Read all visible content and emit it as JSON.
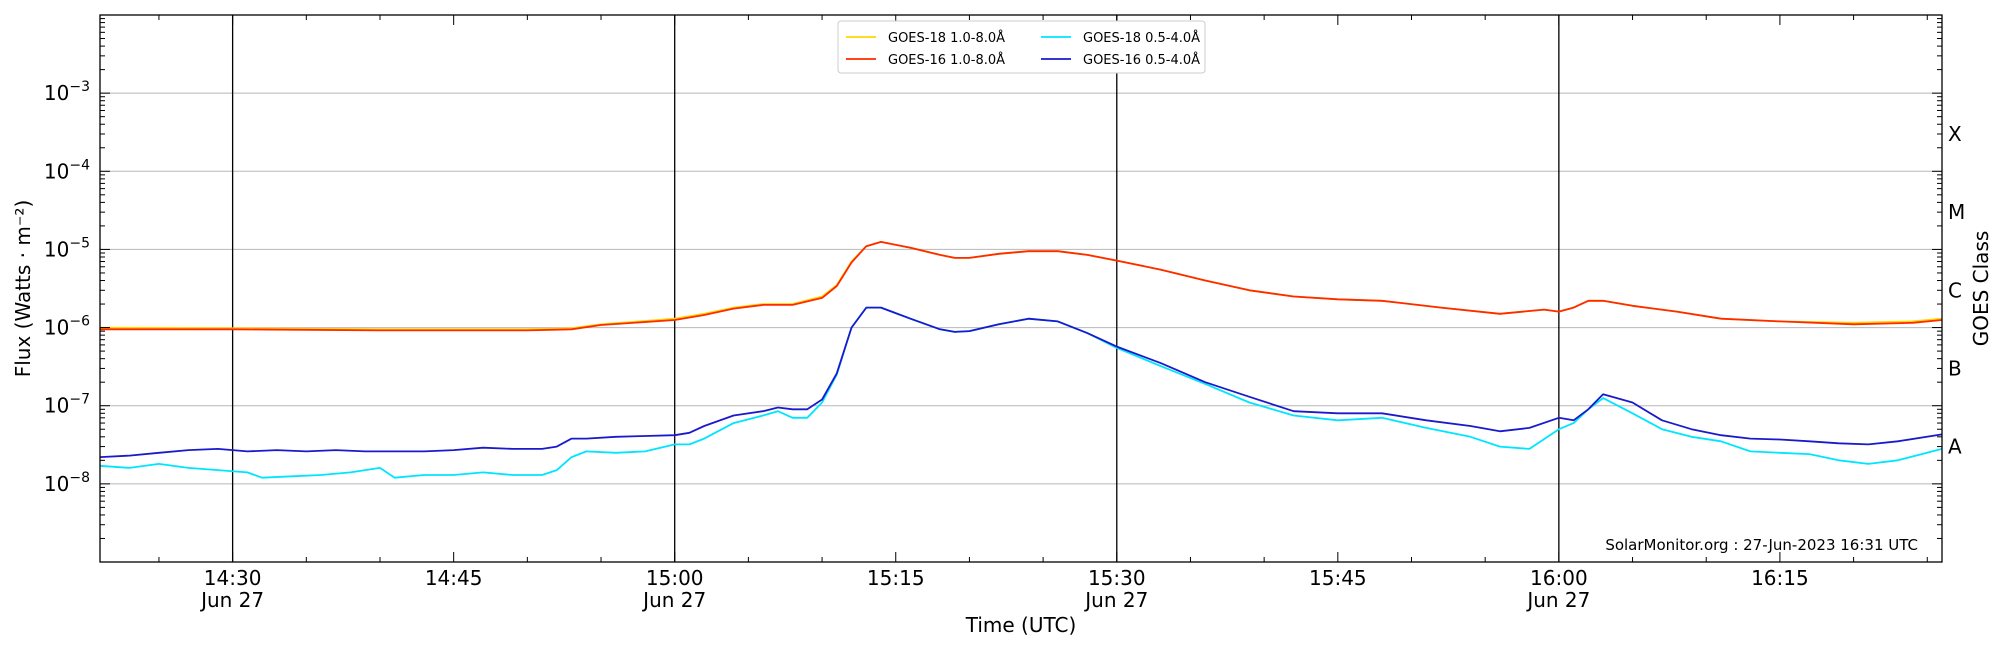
{
  "chart_data": {
    "type": "line",
    "xlabel": "Time (UTC)",
    "ylabel": "Flux (Watts · m⁻²)",
    "y2label": "GOES Class",
    "credit": "SolarMonitor.org : 27-Jun-2023 16:31 UTC",
    "yscale": "log",
    "ylim": [
      1e-09,
      0.01
    ],
    "xlim": [
      "14:21",
      "16:26"
    ],
    "y_ticks": [
      {
        "value": 1e-08,
        "base": "10",
        "exp": "−8"
      },
      {
        "value": 1e-07,
        "base": "10",
        "exp": "−7"
      },
      {
        "value": 1e-06,
        "base": "10",
        "exp": "−6"
      },
      {
        "value": 1e-05,
        "base": "10",
        "exp": "−5"
      },
      {
        "value": 0.0001,
        "base": "10",
        "exp": "−4"
      },
      {
        "value": 0.001,
        "base": "10",
        "exp": "−3"
      }
    ],
    "x_ticks": [
      {
        "time": "14:30",
        "label": "14:30",
        "date": "Jun 27"
      },
      {
        "time": "14:45",
        "label": "14:45",
        "date": ""
      },
      {
        "time": "15:00",
        "label": "15:00",
        "date": "Jun 27"
      },
      {
        "time": "15:15",
        "label": "15:15",
        "date": ""
      },
      {
        "time": "15:30",
        "label": "15:30",
        "date": "Jun 27"
      },
      {
        "time": "15:45",
        "label": "15:45",
        "date": ""
      },
      {
        "time": "16:00",
        "label": "16:00",
        "date": "Jun 27"
      },
      {
        "time": "16:15",
        "label": "16:15",
        "date": ""
      }
    ],
    "vertical_lines": [
      "14:30",
      "15:00",
      "15:30",
      "16:00"
    ],
    "goes_classes": [
      {
        "label": "A",
        "value": 3e-08
      },
      {
        "label": "B",
        "value": 3e-07
      },
      {
        "label": "C",
        "value": 3e-06
      },
      {
        "label": "M",
        "value": 3e-05
      },
      {
        "label": "X",
        "value": 0.0003
      }
    ],
    "grid": "horizontal",
    "legend_position": "top-center",
    "series": [
      {
        "name": "GOES-18 1.0-8.0Å",
        "color": "#ffd700",
        "x": [
          "14:21",
          "14:30",
          "14:40",
          "14:50",
          "14:53",
          "14:55",
          "15:00",
          "15:02",
          "15:04",
          "15:06",
          "15:08",
          "15:10",
          "15:11",
          "15:12",
          "15:13",
          "15:14",
          "15:16",
          "15:18",
          "15:19",
          "15:20",
          "15:22",
          "15:24",
          "15:26",
          "15:28",
          "15:30",
          "15:33",
          "15:36",
          "15:39",
          "15:42",
          "15:45",
          "15:48",
          "15:52",
          "15:56",
          "15:59",
          "16:00",
          "16:01",
          "16:02",
          "16:03",
          "16:05",
          "16:08",
          "16:11",
          "16:15",
          "16:20",
          "16:24",
          "16:26"
        ],
        "values": [
          1e-06,
          9.8e-07,
          9.5e-07,
          9.5e-07,
          9.8e-07,
          1.1e-06,
          1.3e-06,
          1.5e-06,
          1.8e-06,
          2e-06,
          2e-06,
          2.5e-06,
          3.5e-06,
          7e-06,
          1.1e-05,
          1.25e-05,
          1.05e-05,
          8.5e-06,
          7.8e-06,
          7.8e-06,
          8.8e-06,
          9.5e-06,
          9.5e-06,
          8.5e-06,
          7.2e-06,
          5.5e-06,
          4e-06,
          3e-06,
          2.5e-06,
          2.3e-06,
          2.2e-06,
          1.8e-06,
          1.5e-06,
          1.7e-06,
          1.6e-06,
          1.8e-06,
          2.2e-06,
          2.2e-06,
          1.9e-06,
          1.6e-06,
          1.3e-06,
          1.2e-06,
          1.15e-06,
          1.2e-06,
          1.3e-06
        ]
      },
      {
        "name": "GOES-16 1.0-8.0Å",
        "color": "#ff2a00",
        "x": [
          "14:21",
          "14:30",
          "14:40",
          "14:50",
          "14:53",
          "14:55",
          "15:00",
          "15:02",
          "15:04",
          "15:06",
          "15:08",
          "15:10",
          "15:11",
          "15:12",
          "15:13",
          "15:14",
          "15:16",
          "15:18",
          "15:19",
          "15:20",
          "15:22",
          "15:24",
          "15:26",
          "15:28",
          "15:30",
          "15:33",
          "15:36",
          "15:39",
          "15:42",
          "15:45",
          "15:48",
          "15:52",
          "15:56",
          "15:59",
          "16:00",
          "16:01",
          "16:02",
          "16:03",
          "16:05",
          "16:08",
          "16:11",
          "16:15",
          "16:20",
          "16:24",
          "16:26"
        ],
        "values": [
          9.5e-07,
          9.5e-07,
          9.2e-07,
          9.2e-07,
          9.5e-07,
          1.08e-06,
          1.25e-06,
          1.45e-06,
          1.75e-06,
          1.95e-06,
          1.95e-06,
          2.4e-06,
          3.4e-06,
          6.8e-06,
          1.1e-05,
          1.25e-05,
          1.05e-05,
          8.5e-06,
          7.8e-06,
          7.8e-06,
          8.8e-06,
          9.5e-06,
          9.5e-06,
          8.5e-06,
          7.2e-06,
          5.5e-06,
          4e-06,
          3e-06,
          2.5e-06,
          2.3e-06,
          2.2e-06,
          1.8e-06,
          1.5e-06,
          1.7e-06,
          1.6e-06,
          1.8e-06,
          2.2e-06,
          2.2e-06,
          1.9e-06,
          1.6e-06,
          1.3e-06,
          1.2e-06,
          1.1e-06,
          1.15e-06,
          1.25e-06
        ]
      },
      {
        "name": "GOES-18 0.5-4.0Å",
        "color": "#00e5ff",
        "x": [
          "14:21",
          "14:23",
          "14:25",
          "14:27",
          "14:29",
          "14:31",
          "14:32",
          "14:34",
          "14:36",
          "14:38",
          "14:40",
          "14:41",
          "14:43",
          "14:45",
          "14:47",
          "14:49",
          "14:51",
          "14:52",
          "14:53",
          "14:54",
          "14:56",
          "14:58",
          "15:00",
          "15:01",
          "15:02",
          "15:04",
          "15:06",
          "15:07",
          "15:08",
          "15:09",
          "15:10",
          "15:11",
          "15:12",
          "15:13",
          "15:14",
          "15:16",
          "15:18",
          "15:19",
          "15:20",
          "15:22",
          "15:24",
          "15:26",
          "15:28",
          "15:30",
          "15:33",
          "15:36",
          "15:39",
          "15:42",
          "15:45",
          "15:48",
          "15:51",
          "15:54",
          "15:56",
          "15:58",
          "16:00",
          "16:01",
          "16:02",
          "16:03",
          "16:05",
          "16:07",
          "16:09",
          "16:11",
          "16:13",
          "16:15",
          "16:17",
          "16:19",
          "16:21",
          "16:23",
          "16:26"
        ],
        "values": [
          1.7e-08,
          1.6e-08,
          1.8e-08,
          1.6e-08,
          1.5e-08,
          1.4e-08,
          1.2e-08,
          1.25e-08,
          1.3e-08,
          1.4e-08,
          1.6e-08,
          1.2e-08,
          1.3e-08,
          1.3e-08,
          1.4e-08,
          1.3e-08,
          1.3e-08,
          1.5e-08,
          2.2e-08,
          2.6e-08,
          2.5e-08,
          2.6e-08,
          3.2e-08,
          3.2e-08,
          3.8e-08,
          6e-08,
          7.5e-08,
          8.5e-08,
          7e-08,
          7e-08,
          1.1e-07,
          2.5e-07,
          1e-06,
          1.8e-06,
          1.8e-06,
          1.3e-06,
          9.5e-07,
          8.8e-07,
          9e-07,
          1.1e-06,
          1.3e-06,
          1.2e-06,
          8.5e-07,
          5.5e-07,
          3.2e-07,
          1.9e-07,
          1.1e-07,
          7.5e-08,
          6.5e-08,
          7e-08,
          5.2e-08,
          4e-08,
          3e-08,
          2.8e-08,
          5e-08,
          6e-08,
          9e-08,
          1.25e-07,
          8e-08,
          5e-08,
          4e-08,
          3.5e-08,
          2.6e-08,
          2.5e-08,
          2.4e-08,
          2e-08,
          1.8e-08,
          2e-08,
          2.8e-08
        ]
      },
      {
        "name": "GOES-16 0.5-4.0Å",
        "color": "#1a1acc",
        "x": [
          "14:21",
          "14:23",
          "14:25",
          "14:27",
          "14:29",
          "14:31",
          "14:33",
          "14:35",
          "14:37",
          "14:39",
          "14:41",
          "14:43",
          "14:45",
          "14:47",
          "14:49",
          "14:51",
          "14:52",
          "14:53",
          "14:54",
          "14:56",
          "14:58",
          "15:00",
          "15:01",
          "15:02",
          "15:04",
          "15:06",
          "15:07",
          "15:08",
          "15:09",
          "15:10",
          "15:11",
          "15:12",
          "15:13",
          "15:14",
          "15:16",
          "15:18",
          "15:19",
          "15:20",
          "15:22",
          "15:24",
          "15:26",
          "15:28",
          "15:30",
          "15:33",
          "15:36",
          "15:39",
          "15:42",
          "15:45",
          "15:48",
          "15:51",
          "15:54",
          "15:56",
          "15:58",
          "16:00",
          "16:01",
          "16:02",
          "16:03",
          "16:05",
          "16:07",
          "16:09",
          "16:11",
          "16:13",
          "16:15",
          "16:17",
          "16:19",
          "16:21",
          "16:23",
          "16:26"
        ],
        "values": [
          2.2e-08,
          2.3e-08,
          2.5e-08,
          2.7e-08,
          2.8e-08,
          2.6e-08,
          2.7e-08,
          2.6e-08,
          2.7e-08,
          2.6e-08,
          2.6e-08,
          2.6e-08,
          2.7e-08,
          2.9e-08,
          2.8e-08,
          2.8e-08,
          3e-08,
          3.8e-08,
          3.8e-08,
          4e-08,
          4.1e-08,
          4.2e-08,
          4.5e-08,
          5.5e-08,
          7.5e-08,
          8.5e-08,
          9.5e-08,
          9e-08,
          9e-08,
          1.2e-07,
          2.6e-07,
          1e-06,
          1.8e-06,
          1.8e-06,
          1.3e-06,
          9.5e-07,
          8.8e-07,
          9e-07,
          1.1e-06,
          1.3e-06,
          1.2e-06,
          8.5e-07,
          5.7e-07,
          3.5e-07,
          2e-07,
          1.3e-07,
          8.5e-08,
          8e-08,
          8e-08,
          6.5e-08,
          5.5e-08,
          4.7e-08,
          5.2e-08,
          7e-08,
          6.5e-08,
          9e-08,
          1.4e-07,
          1.1e-07,
          6.5e-08,
          5e-08,
          4.2e-08,
          3.8e-08,
          3.7e-08,
          3.5e-08,
          3.3e-08,
          3.2e-08,
          3.5e-08,
          4.3e-08
        ]
      }
    ]
  }
}
